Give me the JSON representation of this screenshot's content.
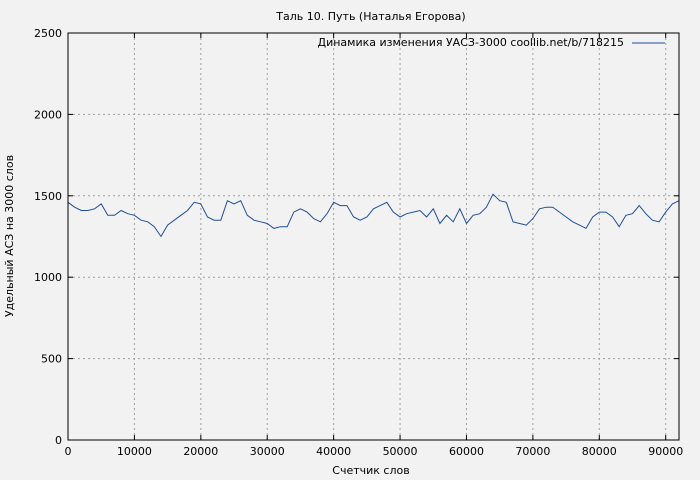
{
  "chart_data": {
    "type": "line",
    "title": "Таль 10. Путь (Наталья Егорова)",
    "xlabel": "Счетчик слов",
    "ylabel": "Удельный АСЗ на 3000 слов",
    "xlim": [
      0,
      92000
    ],
    "ylim": [
      0,
      2500
    ],
    "xticks": [
      0,
      10000,
      20000,
      30000,
      40000,
      50000,
      60000,
      70000,
      80000,
      90000
    ],
    "yticks": [
      0,
      500,
      1000,
      1500,
      2000,
      2500
    ],
    "grid": true,
    "legend_position": "top-right",
    "series": [
      {
        "name": "Динамика изменения УАСЗ-3000 coollib.net/b/718215",
        "color": "#1f4e9c",
        "x": [
          0,
          1000,
          2000,
          3000,
          4000,
          5000,
          6000,
          7000,
          8000,
          9000,
          10000,
          11000,
          12000,
          13000,
          14000,
          15000,
          16000,
          17000,
          18000,
          19000,
          20000,
          21000,
          22000,
          23000,
          24000,
          25000,
          26000,
          27000,
          28000,
          29000,
          30000,
          31000,
          32000,
          33000,
          34000,
          35000,
          36000,
          37000,
          38000,
          39000,
          40000,
          41000,
          42000,
          43000,
          44000,
          45000,
          46000,
          47000,
          48000,
          49000,
          50000,
          51000,
          52000,
          53000,
          54000,
          55000,
          56000,
          57000,
          58000,
          59000,
          60000,
          61000,
          62000,
          63000,
          64000,
          65000,
          66000,
          67000,
          68000,
          69000,
          70000,
          71000,
          72000,
          73000,
          74000,
          75000,
          76000,
          77000,
          78000,
          79000,
          80000,
          81000,
          82000,
          83000,
          84000,
          85000,
          86000,
          87000,
          88000,
          89000,
          90000,
          91000,
          92000
        ],
        "y": [
          1460,
          1430,
          1410,
          1410,
          1420,
          1450,
          1380,
          1380,
          1410,
          1390,
          1380,
          1350,
          1340,
          1310,
          1250,
          1320,
          1350,
          1380,
          1410,
          1460,
          1450,
          1370,
          1350,
          1350,
          1470,
          1450,
          1470,
          1380,
          1350,
          1340,
          1330,
          1300,
          1310,
          1310,
          1400,
          1420,
          1400,
          1360,
          1340,
          1390,
          1460,
          1440,
          1440,
          1370,
          1350,
          1370,
          1420,
          1440,
          1460,
          1400,
          1370,
          1390,
          1400,
          1410,
          1370,
          1420,
          1330,
          1380,
          1340,
          1420,
          1330,
          1380,
          1390,
          1430,
          1510,
          1470,
          1460,
          1340,
          1330,
          1320,
          1360,
          1420,
          1430,
          1430,
          1400,
          1370,
          1340,
          1320,
          1300,
          1370,
          1400,
          1400,
          1370,
          1310,
          1380,
          1390,
          1440,
          1390,
          1350,
          1340,
          1400,
          1450,
          1470
        ]
      }
    ]
  }
}
